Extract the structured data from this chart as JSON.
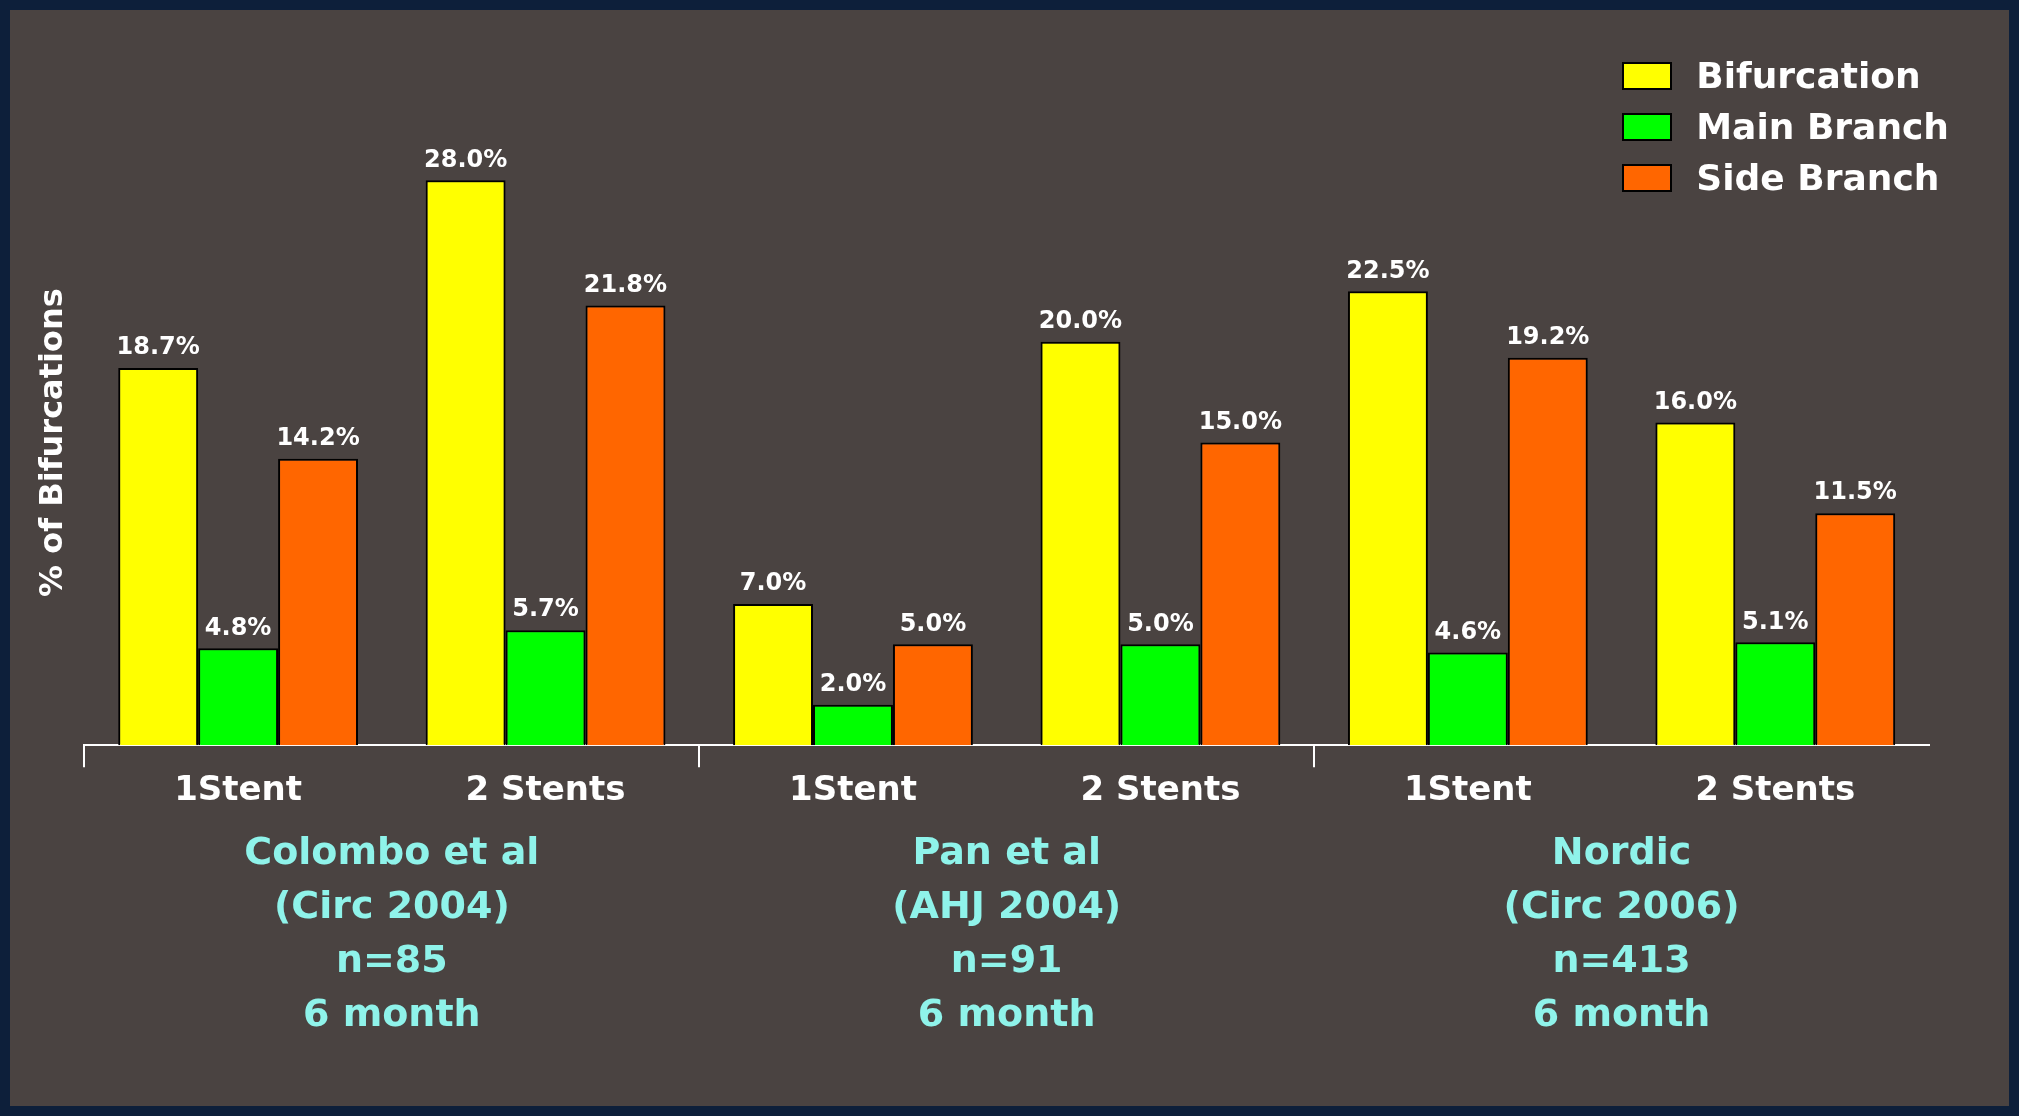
{
  "chart_data": {
    "type": "bar",
    "ylabel": "% of Bifurcations",
    "categories": [
      "1Stent",
      "2 Stents",
      "1Stent",
      "2 Stents",
      "1Stent",
      "2 Stents"
    ],
    "series": [
      {
        "name": "Bifurcation",
        "color": "#ffff00",
        "values": [
          18.7,
          28.0,
          7.0,
          20.0,
          22.5,
          16.0
        ],
        "value_labels": [
          "18.7%",
          "28.0%",
          "7.0%",
          "20.0%",
          "22.5%",
          "16.0%"
        ]
      },
      {
        "name": "Main Branch",
        "color": "#00ff00",
        "values": [
          4.8,
          5.7,
          2.0,
          5.0,
          4.6,
          5.1
        ],
        "value_labels": [
          "4.8%",
          "5.7%",
          "2.0%",
          "5.0%",
          "4.6%",
          "5.1%"
        ]
      },
      {
        "name": "Side Branch",
        "color": "#ff6600",
        "values": [
          14.2,
          21.8,
          5.0,
          15.0,
          19.2,
          11.5
        ],
        "value_labels": [
          "14.2%",
          "21.8%",
          "5.0%",
          "15.0%",
          "19.2%",
          "11.5%"
        ]
      }
    ],
    "annotations": [
      "Colombo et al\n(Circ 2004)\nn=85\n6 month",
      "Pan et al\n(AHJ 2004)\nn=91\n6 month",
      "Nordic\n(Circ 2006)\nn=413\n6 month"
    ],
    "legend": "top right",
    "grid": false
  }
}
